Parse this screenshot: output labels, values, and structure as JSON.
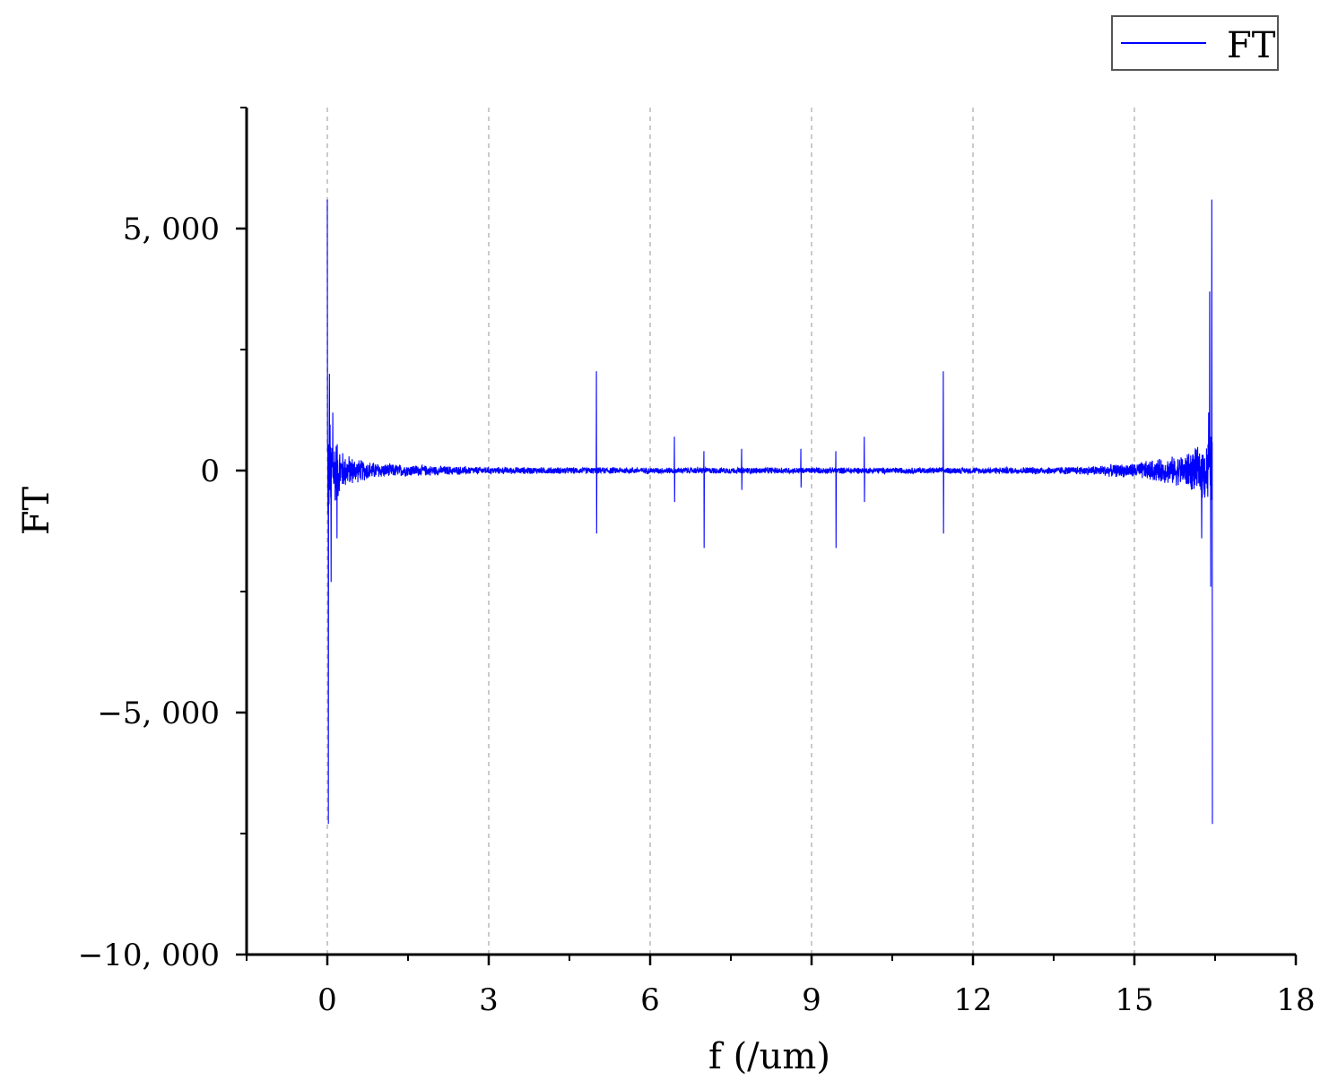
{
  "chart_data": {
    "type": "line",
    "title": "",
    "xlabel": "f (/um)",
    "ylabel": "FT",
    "xlim": [
      -1.5,
      18
    ],
    "ylim": [
      -10000,
      7500
    ],
    "xticks": [
      0,
      3,
      6,
      9,
      12,
      15,
      18
    ],
    "xtick_labels": [
      "0",
      "3",
      "6",
      "9",
      "12",
      "15",
      "18"
    ],
    "yticks": [
      -10000,
      -5000,
      0,
      5000
    ],
    "ytick_labels": [
      "−10, 000",
      "−5, 000",
      "0",
      "5, 000"
    ],
    "grid": "vertical dashed at x major ticks",
    "legend": {
      "position": "top-right",
      "entries": [
        "FT"
      ]
    },
    "series": [
      {
        "name": "FT",
        "color": "#0000ff",
        "noise_envelope": {
          "x": [
            0,
            0.1,
            0.3,
            0.6,
            1.0,
            2.0,
            3.0,
            6.0,
            9.0,
            12.0,
            14.0,
            15.0,
            15.8,
            16.2,
            16.45
          ],
          "amplitude": [
            1500,
            900,
            400,
            250,
            160,
            110,
            80,
            70,
            70,
            70,
            90,
            170,
            330,
            520,
            900
          ]
        },
        "spikes": [
          {
            "x": 0.0,
            "y": 5600
          },
          {
            "x": 0.02,
            "y": -7300
          },
          {
            "x": 0.04,
            "y": 2000
          },
          {
            "x": 0.07,
            "y": -2300
          },
          {
            "x": 0.1,
            "y": 1200
          },
          {
            "x": 0.18,
            "y": -1400
          },
          {
            "x": 5.0,
            "y": 2050
          },
          {
            "x": 5.0,
            "y": -1300
          },
          {
            "x": 6.45,
            "y": 700
          },
          {
            "x": 6.45,
            "y": -650
          },
          {
            "x": 7.0,
            "y": 400
          },
          {
            "x": 7.0,
            "y": -1600
          },
          {
            "x": 7.7,
            "y": 450
          },
          {
            "x": 7.7,
            "y": -400
          },
          {
            "x": 8.8,
            "y": 450
          },
          {
            "x": 8.8,
            "y": -350
          },
          {
            "x": 9.45,
            "y": 400
          },
          {
            "x": 9.45,
            "y": -1600
          },
          {
            "x": 9.98,
            "y": 700
          },
          {
            "x": 9.98,
            "y": -650
          },
          {
            "x": 11.45,
            "y": 2050
          },
          {
            "x": 11.45,
            "y": -1300
          },
          {
            "x": 16.25,
            "y": -1400
          },
          {
            "x": 16.38,
            "y": 1200
          },
          {
            "x": 16.4,
            "y": 3700
          },
          {
            "x": 16.42,
            "y": -2400
          },
          {
            "x": 16.44,
            "y": 5600
          },
          {
            "x": 16.45,
            "y": -7300
          }
        ]
      }
    ]
  }
}
